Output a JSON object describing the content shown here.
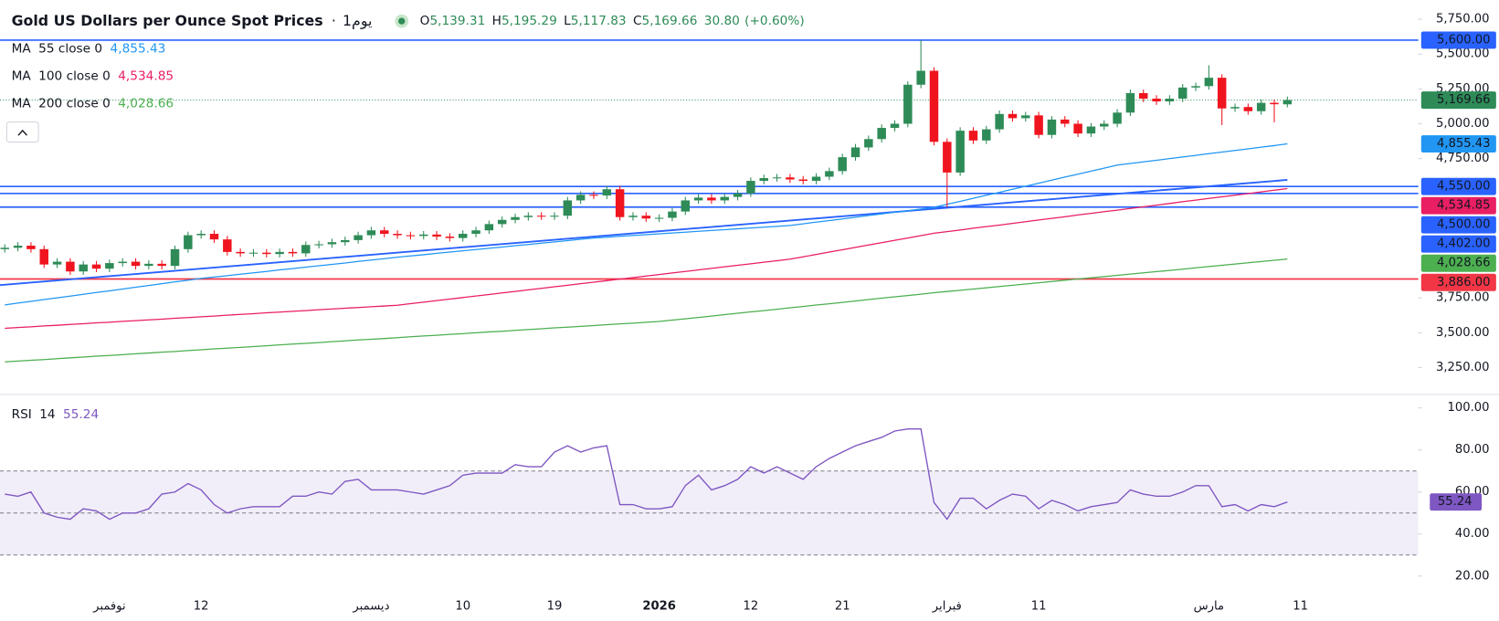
{
  "chart_data": {
    "type": "candlestick",
    "title": "Gold US Dollars per Ounce Spot Prices",
    "separator": "·",
    "interval": "1يوم",
    "ohlc_header": [
      {
        "key": "O",
        "value": "5,139.31"
      },
      {
        "key": "H",
        "value": "5,195.29"
      },
      {
        "key": "L",
        "value": "5,117.83"
      },
      {
        "key": "C",
        "value": "5,169.66"
      }
    ],
    "change": "30.80",
    "change_pct": "(+0.60%)",
    "up_color": "#2e8b57",
    "down_color": "#f0141e",
    "categories": [
      null,
      null,
      null,
      null,
      null,
      null,
      null,
      null,
      "نوفمبر",
      null,
      null,
      null,
      null,
      null,
      null,
      "12",
      null,
      null,
      null,
      null,
      null,
      null,
      null,
      null,
      null,
      null,
      null,
      null,
      "ديسمبر",
      null,
      null,
      null,
      null,
      null,
      null,
      "10",
      null,
      null,
      null,
      null,
      null,
      null,
      "19",
      null,
      null,
      null,
      null,
      null,
      null,
      null,
      "2026",
      null,
      null,
      null,
      null,
      null,
      null,
      "12",
      null,
      null,
      null,
      null,
      null,
      null,
      "21",
      null,
      null,
      null,
      null,
      null,
      null,
      null,
      "فبراير",
      null,
      null,
      null,
      null,
      null,
      null,
      "11",
      null,
      null,
      null,
      null,
      null,
      null,
      null,
      null,
      null,
      null,
      null,
      null,
      "مارس",
      null,
      null,
      null,
      null,
      null,
      null,
      "11"
    ],
    "open": [
      4100,
      4110,
      4125,
      4100,
      3990,
      4010,
      3940,
      3990,
      3960,
      4000,
      4010,
      3980,
      3995,
      3980,
      4100,
      4200,
      4210,
      4170,
      4080,
      4070,
      4075,
      4065,
      4080,
      4070,
      4130,
      4135,
      4150,
      4165,
      4200,
      4235,
      4210,
      4200,
      4195,
      4205,
      4190,
      4180,
      4210,
      4235,
      4280,
      4310,
      4330,
      4340,
      4335,
      4340,
      4450,
      4490,
      4485,
      4530,
      4330,
      4340,
      4320,
      4325,
      4370,
      4450,
      4470,
      4450,
      4475,
      4500,
      4590,
      4610,
      4615,
      4600,
      4590,
      4620,
      4660,
      4760,
      4830,
      4890,
      4970,
      5000,
      5280,
      5380,
      4870,
      4650,
      4950,
      4880,
      4960,
      5070,
      5040,
      5060,
      4920,
      5030,
      5000,
      4930,
      4980,
      5000,
      5080,
      5220,
      5180,
      5160,
      5180,
      5260,
      5270,
      5330,
      5110,
      5120,
      5090,
      5150,
      5139.31,
      null
    ],
    "high": [
      4135,
      4150,
      4150,
      4125,
      4035,
      4035,
      4015,
      4015,
      4025,
      4035,
      4035,
      4020,
      4020,
      4125,
      4225,
      4235,
      4235,
      4195,
      4105,
      4100,
      4100,
      4105,
      4105,
      4155,
      4160,
      4175,
      4190,
      4225,
      4260,
      4260,
      4235,
      4225,
      4230,
      4230,
      4215,
      4235,
      4260,
      4305,
      4335,
      4355,
      4365,
      4365,
      4365,
      4475,
      4515,
      4515,
      4555,
      4555,
      4365,
      4365,
      4350,
      4395,
      4475,
      4495,
      4495,
      4500,
      4525,
      4615,
      4635,
      4640,
      4640,
      4625,
      4645,
      4685,
      4785,
      4855,
      4915,
      4995,
      5025,
      5305,
      5600,
      5405,
      4895,
      4975,
      4975,
      4985,
      5095,
      5095,
      5085,
      5085,
      5055,
      5055,
      5025,
      5005,
      5025,
      5105,
      5245,
      5245,
      5205,
      5205,
      5285,
      5295,
      5420,
      5355,
      5145,
      5145,
      5175,
      5175,
      5195.29,
      null
    ],
    "low": [
      4075,
      4085,
      4075,
      3965,
      3965,
      3915,
      3915,
      3935,
      3935,
      3975,
      3955,
      3955,
      3955,
      3955,
      4075,
      4175,
      4145,
      4055,
      4045,
      4045,
      4040,
      4040,
      4045,
      4045,
      4105,
      4110,
      4125,
      4140,
      4175,
      4185,
      4175,
      4170,
      4170,
      4165,
      4155,
      4155,
      4185,
      4210,
      4255,
      4285,
      4305,
      4310,
      4310,
      4315,
      4425,
      4460,
      4460,
      4305,
      4305,
      4295,
      4295,
      4300,
      4345,
      4425,
      4425,
      4425,
      4450,
      4475,
      4565,
      4585,
      4575,
      4565,
      4565,
      4595,
      4635,
      4735,
      4805,
      4865,
      4945,
      4975,
      5255,
      4845,
      4402,
      4625,
      4855,
      4855,
      4935,
      5015,
      5015,
      4895,
      4895,
      4975,
      4905,
      4905,
      4955,
      4975,
      5055,
      5155,
      5135,
      5135,
      5155,
      5235,
      5245,
      4990,
      5085,
      5065,
      5065,
      5010,
      5117.83,
      null
    ],
    "close": [
      4110,
      4125,
      4100,
      3990,
      4010,
      3940,
      3990,
      3960,
      4000,
      4010,
      3980,
      3995,
      3980,
      4100,
      4200,
      4210,
      4170,
      4080,
      4070,
      4075,
      4065,
      4080,
      4070,
      4130,
      4135,
      4150,
      4165,
      4200,
      4235,
      4210,
      4200,
      4195,
      4205,
      4190,
      4180,
      4210,
      4235,
      4280,
      4310,
      4330,
      4340,
      4335,
      4340,
      4450,
      4490,
      4485,
      4530,
      4330,
      4340,
      4320,
      4325,
      4370,
      4450,
      4470,
      4450,
      4475,
      4500,
      4590,
      4610,
      4615,
      4600,
      4590,
      4620,
      4660,
      4760,
      4830,
      4890,
      4970,
      5000,
      5280,
      5380,
      4870,
      4650,
      4950,
      4880,
      4960,
      5070,
      5040,
      5060,
      4920,
      5030,
      5000,
      4930,
      4980,
      5000,
      5080,
      5220,
      5180,
      5160,
      5180,
      5260,
      5270,
      5330,
      5110,
      5120,
      5090,
      5150,
      5140,
      5169.66,
      null
    ],
    "close_badge": "5,169.66",
    "ylim": [
      3064,
      5888
    ],
    "yticks": [
      {
        "value": 5750,
        "label": "5,750.00"
      },
      {
        "value": 5500,
        "label": "5,500.00"
      },
      {
        "value": 5250,
        "label": "5,250.00"
      },
      {
        "value": 5000,
        "label": "5,000.00"
      },
      {
        "value": 4750,
        "label": "4,750.00"
      },
      {
        "value": 3750,
        "label": "3,750.00"
      },
      {
        "value": 3500,
        "label": "3,500.00"
      },
      {
        "value": 3250,
        "label": "3,250.00"
      }
    ],
    "levels": [
      {
        "value": 5600,
        "label": "5,600.00",
        "color": "#2962ff"
      },
      {
        "value": 4550,
        "label": "4,550.00",
        "color": "#2962ff"
      },
      {
        "value": 4500,
        "label": "4,500.00",
        "color": "#2962ff"
      },
      {
        "value": 4402,
        "label": "4,402.00",
        "color": "#2962ff"
      },
      {
        "value": 3886,
        "label": "3,886.00",
        "color": "#f23645"
      }
    ],
    "trendline": {
      "start": 3842,
      "end": 4597,
      "color": "#2962ff"
    },
    "series": [
      {
        "name": "MA",
        "params": "55 close 0",
        "badge": "4,855.43",
        "color": "#2196f3",
        "values": [
          3700,
          3713,
          3725,
          3738,
          3751,
          3763,
          3776,
          3789,
          3801,
          3814,
          3827,
          3839,
          3852,
          3865,
          3877,
          3890,
          3900,
          3910,
          3920,
          3930,
          3940,
          3951,
          3961,
          3971,
          3981,
          3991,
          4001,
          4012,
          4022,
          4032,
          4042,
          4051,
          4060,
          4070,
          4079,
          4088,
          4097,
          4106,
          4115,
          4125,
          4134,
          4143,
          4152,
          4161,
          4171,
          4180,
          4186,
          4192,
          4198,
          4204,
          4210,
          4216,
          4222,
          4228,
          4234,
          4240,
          4246,
          4252,
          4258,
          4264,
          4270,
          4282,
          4294,
          4305,
          4317,
          4329,
          4341,
          4353,
          4365,
          4376,
          4388,
          4400,
          4422,
          4443,
          4465,
          4487,
          4508,
          4530,
          4552,
          4573,
          4595,
          4617,
          4638,
          4660,
          4681,
          4703,
          4715,
          4726,
          4738,
          4750,
          4762,
          4773,
          4785,
          4797,
          4808,
          4820,
          4832,
          4843,
          4855.43,
          null
        ]
      },
      {
        "name": "MA",
        "params": "100 close 0",
        "badge": "4,534.85",
        "color": "#e91e63",
        "values": [
          3532,
          3538,
          3543,
          3549,
          3554,
          3560,
          3565,
          3571,
          3576,
          3582,
          3587,
          3593,
          3598,
          3604,
          3609,
          3615,
          3620,
          3626,
          3632,
          3637,
          3643,
          3648,
          3654,
          3659,
          3665,
          3670,
          3676,
          3681,
          3687,
          3692,
          3698,
          3709,
          3720,
          3731,
          3742,
          3753,
          3764,
          3775,
          3786,
          3797,
          3808,
          3819,
          3830,
          3841,
          3852,
          3863,
          3874,
          3885,
          3896,
          3907,
          3918,
          3929,
          3940,
          3951,
          3962,
          3973,
          3984,
          3995,
          4006,
          4017,
          4028,
          4045,
          4062,
          4079,
          4096,
          4113,
          4130,
          4147,
          4163,
          4180,
          4197,
          4214,
          4226,
          4238,
          4250,
          4262,
          4273,
          4285,
          4297,
          4309,
          4321,
          4333,
          4345,
          4357,
          4369,
          4380,
          4392,
          4404,
          4416,
          4428,
          4440,
          4452,
          4464,
          4476,
          4487,
          4499,
          4511,
          4523,
          4534.85,
          null
        ]
      },
      {
        "name": "MA",
        "params": "200 close 0",
        "badge": "4,028.66",
        "color": "#4caf50",
        "values": [
          3291,
          3297,
          3303,
          3308,
          3314,
          3320,
          3326,
          3332,
          3337,
          3343,
          3349,
          3355,
          3361,
          3366,
          3372,
          3378,
          3384,
          3390,
          3395,
          3401,
          3407,
          3413,
          3419,
          3424,
          3430,
          3436,
          3442,
          3448,
          3453,
          3459,
          3465,
          3471,
          3477,
          3482,
          3488,
          3494,
          3500,
          3506,
          3511,
          3517,
          3523,
          3529,
          3535,
          3540,
          3546,
          3552,
          3558,
          3564,
          3569,
          3575,
          3581,
          3591,
          3600,
          3610,
          3620,
          3630,
          3640,
          3650,
          3659,
          3669,
          3679,
          3689,
          3699,
          3708,
          3718,
          3728,
          3738,
          3748,
          3758,
          3767,
          3777,
          3787,
          3796,
          3805,
          3814,
          3823,
          3832,
          3841,
          3850,
          3859,
          3868,
          3877,
          3886,
          3895,
          3903,
          3912,
          3921,
          3930,
          3939,
          3948,
          3957,
          3966,
          3975,
          3984,
          3993,
          4002,
          4011,
          4020,
          4028.66,
          null
        ]
      }
    ],
    "rsi": {
      "name": "RSI",
      "params": "14",
      "badge": "55.24",
      "color": "#7e57c2",
      "values": [
        59,
        58,
        60,
        50,
        48,
        47,
        52,
        51,
        47,
        50,
        50,
        52,
        59,
        60,
        64,
        61,
        54,
        50,
        52,
        53,
        53,
        53,
        58,
        58,
        60,
        59,
        65,
        66,
        61,
        61,
        61,
        60,
        59,
        61,
        63,
        68,
        69,
        69,
        69,
        73,
        72,
        72,
        79,
        82,
        79,
        81,
        82,
        54,
        54,
        52,
        52,
        53,
        63,
        68,
        61,
        63,
        66,
        72,
        69,
        72,
        69,
        66,
        72,
        76,
        79,
        82,
        84,
        86,
        89,
        90,
        90,
        55,
        47,
        57,
        57,
        52,
        56,
        59,
        58,
        52,
        56,
        54,
        51,
        53,
        54,
        55,
        61,
        59,
        58,
        58,
        60,
        63,
        63,
        53,
        54,
        51,
        54,
        53,
        55.24,
        null
      ],
      "ylim": [
        15.5,
        106.4
      ],
      "yticks": [
        {
          "value": 100,
          "label": "100.00"
        },
        {
          "value": 80,
          "label": "80.00"
        },
        {
          "value": 60,
          "label": "60.00"
        },
        {
          "value": 40,
          "label": "40.00"
        },
        {
          "value": 20,
          "label": "20.00"
        }
      ],
      "band": [
        30,
        70
      ],
      "midline": 50
    }
  }
}
